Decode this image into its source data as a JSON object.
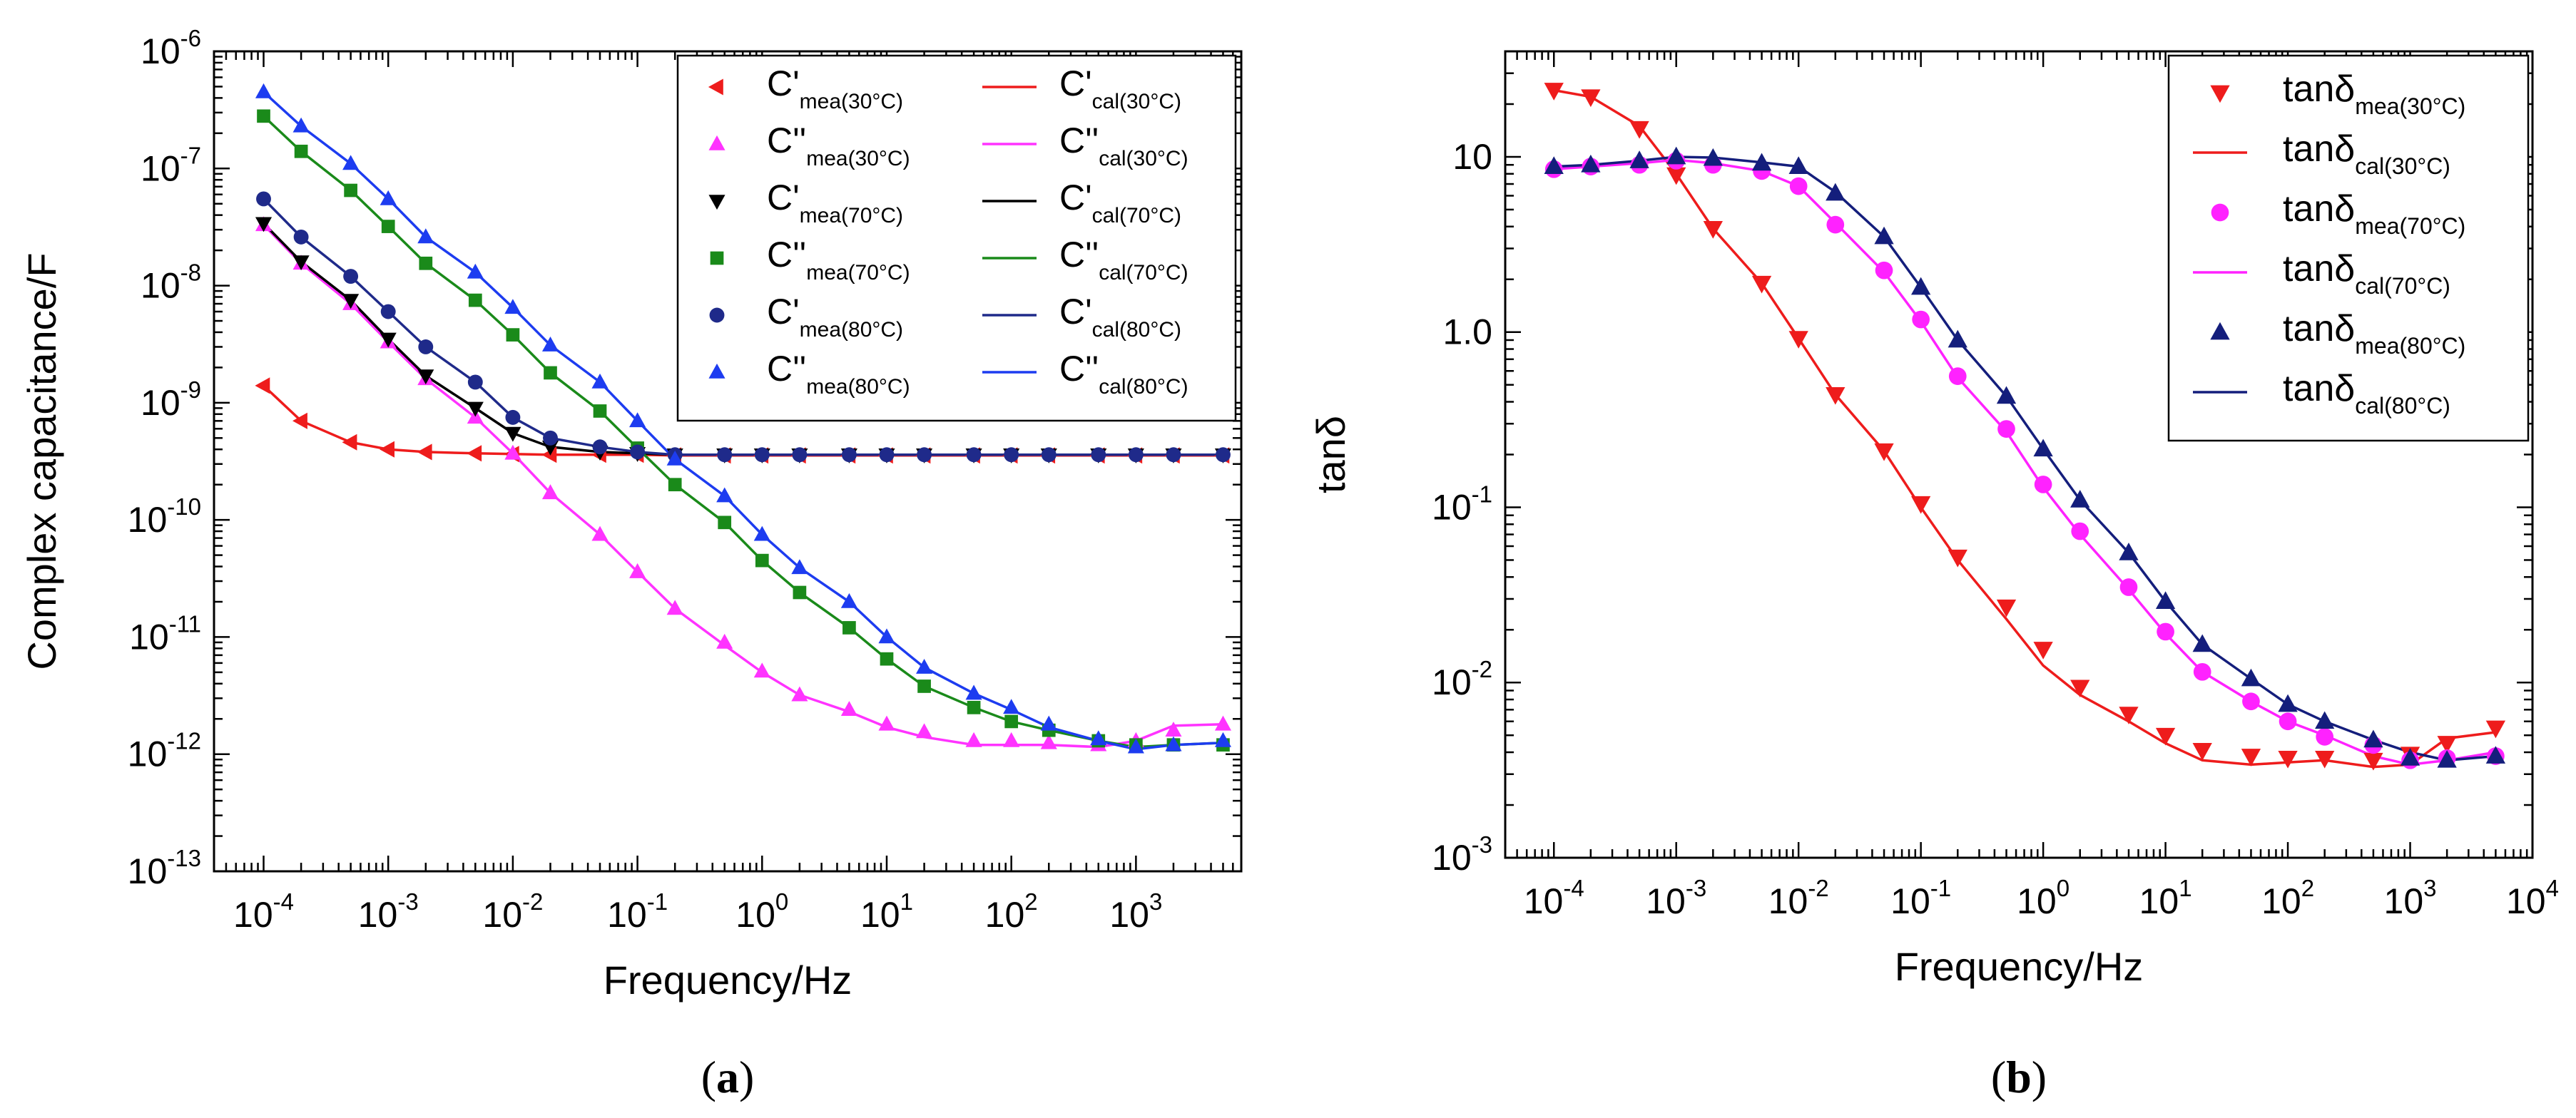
{
  "chart_data": [
    {
      "type": "line",
      "panel_label": "(a)",
      "xlabel": "Frequency/Hz",
      "ylabel": "Complex capacitance/F",
      "xscale": "log",
      "yscale": "log",
      "xlim": [
        4e-05,
        7000
      ],
      "ylim": [
        1e-13,
        1e-06
      ],
      "x_ticks": [
        {
          "base": "10",
          "exp": "-4",
          "value": 0.0001
        },
        {
          "base": "10",
          "exp": "-3",
          "value": 0.001
        },
        {
          "base": "10",
          "exp": "-2",
          "value": 0.01
        },
        {
          "base": "10",
          "exp": "-1",
          "value": 0.1
        },
        {
          "base": "10",
          "exp": "0",
          "value": 1
        },
        {
          "base": "10",
          "exp": "1",
          "value": 10
        },
        {
          "base": "10",
          "exp": "2",
          "value": 100
        },
        {
          "base": "10",
          "exp": "3",
          "value": 1000
        }
      ],
      "y_ticks": [
        {
          "base": "10",
          "exp": "-13",
          "value": 1e-13
        },
        {
          "base": "10",
          "exp": "-12",
          "value": 1e-12
        },
        {
          "base": "10",
          "exp": "-11",
          "value": 1e-11
        },
        {
          "base": "10",
          "exp": "-10",
          "value": 1e-10
        },
        {
          "base": "10",
          "exp": "-9",
          "value": 1e-09
        },
        {
          "base": "10",
          "exp": "-8",
          "value": 1e-08
        },
        {
          "base": "10",
          "exp": "-7",
          "value": 1e-07
        },
        {
          "base": "10",
          "exp": "-6",
          "value": 1e-06
        }
      ],
      "legend_position": "top-right",
      "x": [
        0.0001,
        0.0002,
        0.0005,
        0.001,
        0.002,
        0.005,
        0.01,
        0.02,
        0.05,
        0.1,
        0.2,
        0.5,
        1,
        2,
        5,
        10,
        20,
        50,
        100,
        200,
        500,
        1000,
        2000,
        5000
      ],
      "series": [
        {
          "label_main": "C'",
          "label_sub": "mea(30°C)",
          "kind": "marker",
          "marker": "triangle-left",
          "color": "#ee1c1c",
          "values": [
            1.4e-09,
            7e-10,
            4.6e-10,
            4e-10,
            3.8e-10,
            3.7e-10,
            3.65e-10,
            3.6e-10,
            3.6e-10,
            3.6e-10,
            3.55e-10,
            3.55e-10,
            3.55e-10,
            3.55e-10,
            3.55e-10,
            3.55e-10,
            3.55e-10,
            3.55e-10,
            3.55e-10,
            3.55e-10,
            3.55e-10,
            3.55e-10,
            3.55e-10,
            3.55e-10
          ]
        },
        {
          "label_main": "C'",
          "label_sub": "cal(30°C)",
          "kind": "line",
          "color": "#ee1c1c",
          "values": [
            1.4e-09,
            7e-10,
            4.6e-10,
            4e-10,
            3.8e-10,
            3.7e-10,
            3.65e-10,
            3.6e-10,
            3.6e-10,
            3.6e-10,
            3.55e-10,
            3.55e-10,
            3.55e-10,
            3.55e-10,
            3.55e-10,
            3.55e-10,
            3.55e-10,
            3.55e-10,
            3.55e-10,
            3.55e-10,
            3.55e-10,
            3.55e-10,
            3.55e-10,
            3.55e-10
          ]
        },
        {
          "label_main": "C''",
          "label_sub": "mea(30°C)",
          "kind": "marker",
          "marker": "triangle-up",
          "color": "#ff33ff",
          "values": [
            3.3e-08,
            1.55e-08,
            7e-09,
            3.3e-09,
            1.6e-09,
            7.5e-10,
            3.7e-10,
            1.7e-10,
            7.5e-11,
            3.6e-11,
            1.75e-11,
            9e-12,
            5.1e-12,
            3.2e-12,
            2.4e-12,
            1.8e-12,
            1.55e-12,
            1.3e-12,
            1.3e-12,
            1.25e-12,
            1.2e-12,
            1.3e-12,
            1.6e-12,
            1.8e-12
          ]
        },
        {
          "label_main": "C''",
          "label_sub": "cal(30°C)",
          "kind": "line",
          "color": "#ff33ff",
          "values": [
            3.3e-08,
            1.55e-08,
            7e-09,
            3.3e-09,
            1.6e-09,
            7.5e-10,
            3.7e-10,
            1.7e-10,
            7.5e-11,
            3.6e-11,
            1.75e-11,
            8.5e-12,
            5e-12,
            3.2e-12,
            2.3e-12,
            1.7e-12,
            1.4e-12,
            1.2e-12,
            1.2e-12,
            1.2e-12,
            1.15e-12,
            1.3e-12,
            1.75e-12,
            1.8e-12
          ]
        },
        {
          "label_main": "C'",
          "label_sub": "mea(70°C)",
          "kind": "marker",
          "marker": "triangle-down",
          "color": "#000000",
          "values": [
            3.4e-08,
            1.6e-08,
            7.5e-09,
            3.5e-09,
            1.7e-09,
            9e-10,
            5.5e-10,
            4.2e-10,
            3.8e-10,
            3.7e-10,
            3.6e-10,
            3.6e-10,
            3.6e-10,
            3.6e-10,
            3.6e-10,
            3.6e-10,
            3.6e-10,
            3.6e-10,
            3.6e-10,
            3.6e-10,
            3.6e-10,
            3.6e-10,
            3.6e-10,
            3.6e-10
          ]
        },
        {
          "label_main": "C'",
          "label_sub": "cal(70°C)",
          "kind": "line",
          "color": "#000000",
          "values": [
            3.4e-08,
            1.6e-08,
            7.5e-09,
            3.5e-09,
            1.7e-09,
            9e-10,
            5.5e-10,
            4.2e-10,
            3.8e-10,
            3.7e-10,
            3.6e-10,
            3.6e-10,
            3.6e-10,
            3.6e-10,
            3.6e-10,
            3.6e-10,
            3.6e-10,
            3.6e-10,
            3.6e-10,
            3.6e-10,
            3.6e-10,
            3.6e-10,
            3.6e-10,
            3.6e-10
          ]
        },
        {
          "label_main": "C''",
          "label_sub": "mea(70°C)",
          "kind": "marker",
          "marker": "square",
          "color": "#1a8a1a",
          "values": [
            2.8e-07,
            1.4e-07,
            6.5e-08,
            3.2e-08,
            1.55e-08,
            7.5e-09,
            3.8e-09,
            1.8e-09,
            8.5e-10,
            4.1e-10,
            2e-10,
            9.5e-11,
            4.5e-11,
            2.4e-11,
            1.2e-11,
            6.5e-12,
            3.8e-12,
            2.5e-12,
            1.9e-12,
            1.6e-12,
            1.3e-12,
            1.2e-12,
            1.2e-12,
            1.2e-12
          ]
        },
        {
          "label_main": "C''",
          "label_sub": "cal(70°C)",
          "kind": "line",
          "color": "#1a8a1a",
          "values": [
            2.8e-07,
            1.4e-07,
            6.5e-08,
            3.2e-08,
            1.55e-08,
            7.5e-09,
            3.8e-09,
            1.8e-09,
            8.5e-10,
            4.1e-10,
            2e-10,
            9.5e-11,
            4.5e-11,
            2.4e-11,
            1.2e-11,
            6.5e-12,
            3.8e-12,
            2.5e-12,
            1.9e-12,
            1.6e-12,
            1.3e-12,
            1.15e-12,
            1.2e-12,
            1.25e-12
          ]
        },
        {
          "label_main": "C'",
          "label_sub": "mea(80°C)",
          "kind": "marker",
          "marker": "circle",
          "color": "#1f2a8a",
          "values": [
            5.5e-08,
            2.6e-08,
            1.2e-08,
            6e-09,
            3e-09,
            1.5e-09,
            7.5e-10,
            5e-10,
            4.2e-10,
            3.8e-10,
            3.6e-10,
            3.6e-10,
            3.6e-10,
            3.6e-10,
            3.6e-10,
            3.6e-10,
            3.6e-10,
            3.6e-10,
            3.6e-10,
            3.6e-10,
            3.6e-10,
            3.6e-10,
            3.6e-10,
            3.6e-10
          ]
        },
        {
          "label_main": "C'",
          "label_sub": "cal(80°C)",
          "kind": "line",
          "color": "#1f2a8a",
          "values": [
            5.5e-08,
            2.6e-08,
            1.2e-08,
            6e-09,
            3e-09,
            1.5e-09,
            7.5e-10,
            5e-10,
            4.2e-10,
            3.8e-10,
            3.6e-10,
            3.6e-10,
            3.6e-10,
            3.6e-10,
            3.6e-10,
            3.6e-10,
            3.6e-10,
            3.6e-10,
            3.6e-10,
            3.6e-10,
            3.6e-10,
            3.6e-10,
            3.6e-10,
            3.6e-10
          ]
        },
        {
          "label_main": "C''",
          "label_sub": "mea(80°C)",
          "kind": "marker",
          "marker": "triangle-up",
          "color": "#1d3cf0",
          "values": [
            4.5e-07,
            2.3e-07,
            1.1e-07,
            5.5e-08,
            2.6e-08,
            1.3e-08,
            6.5e-09,
            3.1e-09,
            1.5e-09,
            7e-10,
            3.3e-10,
            1.6e-10,
            7.5e-11,
            3.9e-11,
            2e-11,
            1e-11,
            5.5e-12,
            3.3e-12,
            2.5e-12,
            1.8e-12,
            1.35e-12,
            1.15e-12,
            1.2e-12,
            1.3e-12
          ]
        },
        {
          "label_main": "C''",
          "label_sub": "cal(80°C)",
          "kind": "line",
          "color": "#1d3cf0",
          "values": [
            4.5e-07,
            2.3e-07,
            1.1e-07,
            5.5e-08,
            2.6e-08,
            1.3e-08,
            6.5e-09,
            3.1e-09,
            1.5e-09,
            7e-10,
            3.3e-10,
            1.6e-10,
            7.5e-11,
            3.9e-11,
            2e-11,
            1e-11,
            5.5e-12,
            3.3e-12,
            2.4e-12,
            1.7e-12,
            1.3e-12,
            1.1e-12,
            1.2e-12,
            1.25e-12
          ]
        }
      ]
    },
    {
      "type": "line",
      "panel_label": "(b)",
      "xlabel": "Frequency/Hz",
      "ylabel": "tanδ",
      "xscale": "log",
      "yscale": "log",
      "xlim": [
        4e-05,
        10000
      ],
      "ylim": [
        0.001,
        40
      ],
      "x_ticks": [
        {
          "base": "10",
          "exp": "-4",
          "value": 0.0001
        },
        {
          "base": "10",
          "exp": "-3",
          "value": 0.001
        },
        {
          "base": "10",
          "exp": "-2",
          "value": 0.01
        },
        {
          "base": "10",
          "exp": "-1",
          "value": 0.1
        },
        {
          "base": "10",
          "exp": "0",
          "value": 1
        },
        {
          "base": "10",
          "exp": "1",
          "value": 10
        },
        {
          "base": "10",
          "exp": "2",
          "value": 100
        },
        {
          "base": "10",
          "exp": "3",
          "value": 1000
        },
        {
          "base": "10",
          "exp": "4",
          "value": 10000
        }
      ],
      "y_ticks": [
        {
          "label": "10",
          "exp": "-3",
          "value": 0.001
        },
        {
          "label": "10",
          "exp": "-2",
          "value": 0.01
        },
        {
          "label": "10",
          "exp": "-1",
          "value": 0.1
        },
        {
          "label": "10",
          "exp": "0",
          "value": 1
        },
        {
          "label": "10",
          "exp": "",
          "value": 10
        }
      ],
      "y_tick_plain": [
        "1.0",
        "10"
      ],
      "legend_position": "top-right",
      "x": [
        0.0001,
        0.0002,
        0.0005,
        0.001,
        0.002,
        0.005,
        0.01,
        0.02,
        0.05,
        0.1,
        0.2,
        0.5,
        1,
        2,
        5,
        10,
        20,
        50,
        100,
        200,
        500,
        1000,
        2000,
        5000
      ],
      "series": [
        {
          "label_main": "tanδ",
          "label_sub": "mea(30°C)",
          "kind": "marker",
          "marker": "triangle-down",
          "color": "#ee1c1c",
          "values": [
            24,
            22,
            14.5,
            7.9,
            3.9,
            1.9,
            0.92,
            0.44,
            0.21,
            0.105,
            0.052,
            0.027,
            0.0155,
            0.0094,
            0.0066,
            0.005,
            0.0041,
            0.0038,
            0.0037,
            0.0037,
            0.0036,
            0.0039,
            0.0045,
            0.0055
          ]
        },
        {
          "label_main": "tanδ",
          "label_sub": "cal(30°C)",
          "kind": "line",
          "color": "#ee1c1c",
          "values": [
            24,
            22,
            15,
            8,
            3.9,
            1.9,
            0.92,
            0.44,
            0.21,
            0.1,
            0.05,
            0.023,
            0.0125,
            0.0085,
            0.006,
            0.0045,
            0.0036,
            0.0034,
            0.0035,
            0.0036,
            0.0033,
            0.0034,
            0.0048,
            0.0052
          ]
        },
        {
          "label_main": "tanδ",
          "label_sub": "mea(70°C)",
          "kind": "marker",
          "marker": "circle",
          "color": "#ff22ff",
          "values": [
            8.5,
            8.8,
            9,
            9.5,
            9,
            8.3,
            6.8,
            4.1,
            2.25,
            1.18,
            0.56,
            0.28,
            0.135,
            0.073,
            0.035,
            0.0195,
            0.0115,
            0.0078,
            0.006,
            0.0049,
            0.0044,
            0.0036,
            0.0037,
            0.0038
          ]
        },
        {
          "label_main": "tanδ",
          "label_sub": "cal(70°C)",
          "kind": "line",
          "color": "#ff22ff",
          "values": [
            8.5,
            8.8,
            9.2,
            9.6,
            9.2,
            8.3,
            6.8,
            4.2,
            2.2,
            1.15,
            0.55,
            0.27,
            0.13,
            0.07,
            0.034,
            0.019,
            0.0115,
            0.0078,
            0.006,
            0.005,
            0.0038,
            0.0034,
            0.0036,
            0.004
          ]
        },
        {
          "label_main": "tanδ",
          "label_sub": "mea(80°C)",
          "kind": "marker",
          "marker": "triangle-up",
          "color": "#141e7c",
          "values": [
            8.8,
            9,
            9.5,
            10,
            9.8,
            9.2,
            8.8,
            6.2,
            3.5,
            1.8,
            0.9,
            0.43,
            0.215,
            0.11,
            0.055,
            0.029,
            0.0165,
            0.0105,
            0.0075,
            0.006,
            0.0047,
            0.0037,
            0.0036,
            0.0038
          ]
        },
        {
          "label_main": "tanδ",
          "label_sub": "cal(80°C)",
          "kind": "line",
          "color": "#141e7c",
          "values": [
            8.8,
            9,
            9.5,
            10,
            9.9,
            9.3,
            8.8,
            6.3,
            3.5,
            1.8,
            0.9,
            0.43,
            0.215,
            0.11,
            0.055,
            0.029,
            0.0165,
            0.0105,
            0.0075,
            0.006,
            0.0047,
            0.004,
            0.0036,
            0.0038
          ]
        }
      ]
    }
  ]
}
